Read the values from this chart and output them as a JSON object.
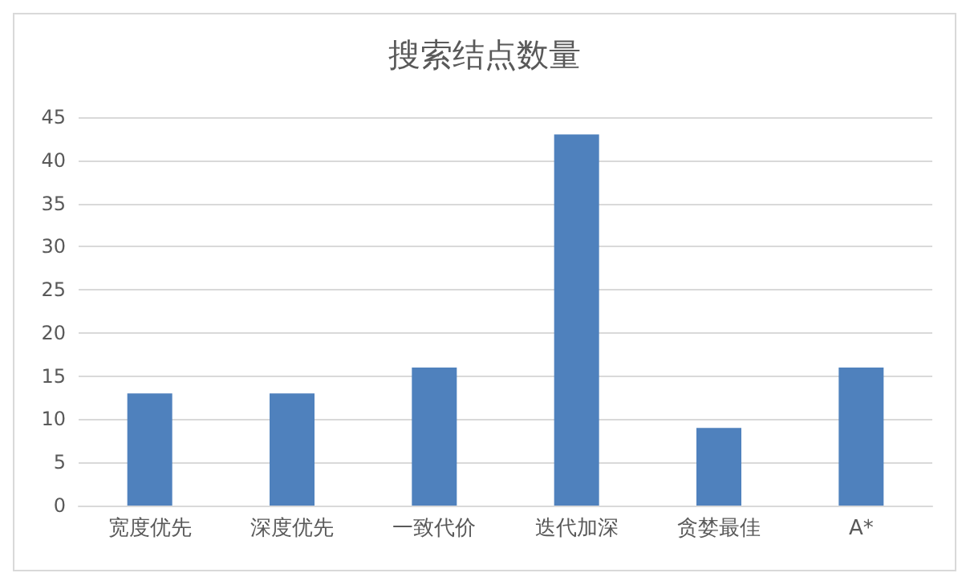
{
  "chart_data": {
    "type": "bar",
    "title": "搜索结点数量",
    "categories": [
      "宽度优先",
      "深度优先",
      "一致代价",
      "迭代加深",
      "贪婪最佳",
      "A*"
    ],
    "values": [
      13,
      13,
      16,
      43,
      9,
      16
    ],
    "color": "#4f81bd",
    "ylim": [
      0,
      45
    ],
    "yticks": [
      0,
      5,
      10,
      15,
      20,
      25,
      30,
      35,
      40,
      45
    ],
    "grid": "y"
  }
}
